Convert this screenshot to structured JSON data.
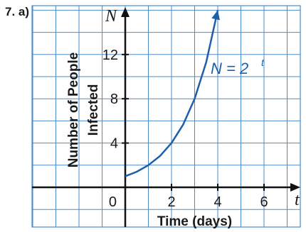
{
  "question_label": "7. a)",
  "chart_data": {
    "type": "line",
    "title": "",
    "xlabel": "Time (days)",
    "ylabel": "Number of People Infected",
    "x_variable": "t",
    "y_variable": "N",
    "xlim": [
      -4,
      8
    ],
    "ylim": [
      -4,
      18
    ],
    "x_ticks": [
      2,
      4,
      6
    ],
    "y_ticks": [
      4,
      8,
      12
    ],
    "origin_label": "0",
    "grid": true,
    "series": [
      {
        "name": "N = 2^t",
        "equation_base": "N = 2",
        "equation_exponent": "t",
        "color": "#1d5fa8",
        "x": [
          0,
          0.5,
          1,
          1.5,
          2,
          2.5,
          3,
          3.5,
          4
        ],
        "y": [
          1,
          1.41,
          2,
          2.83,
          4,
          5.66,
          8,
          11.31,
          16
        ]
      }
    ]
  }
}
